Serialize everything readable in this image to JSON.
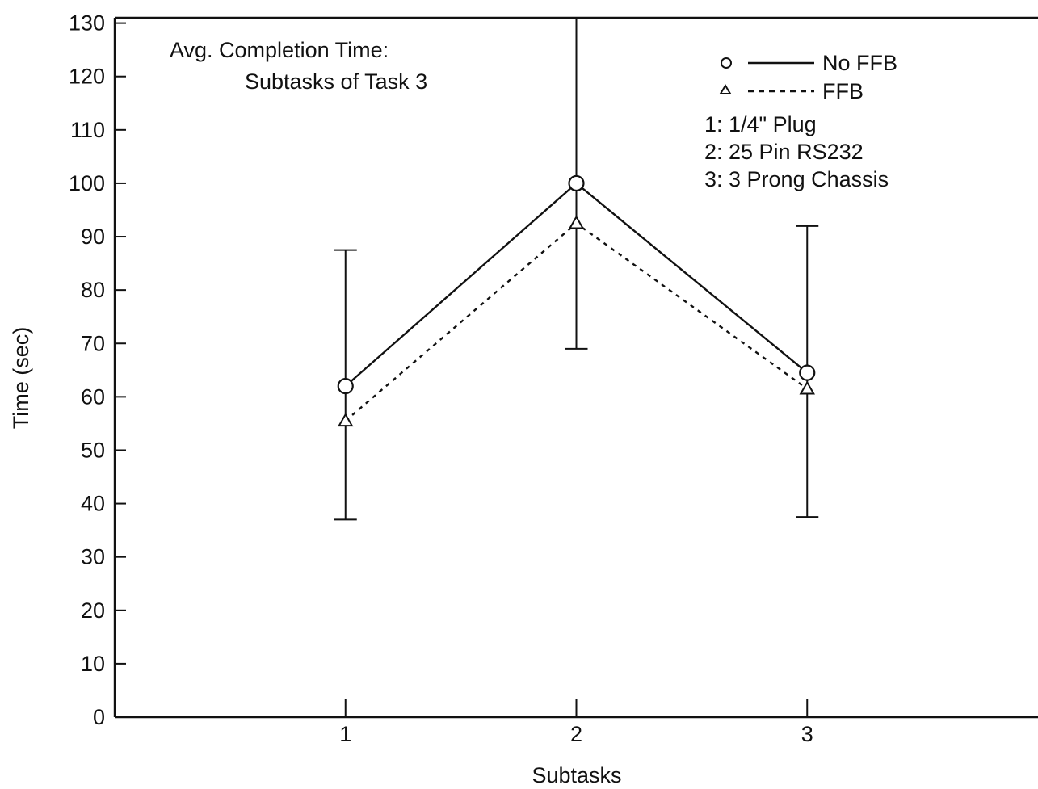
{
  "chart_data": {
    "type": "line",
    "title_lines": [
      "Avg. Completion Time:",
      "Subtasks of Task 3"
    ],
    "xlabel": "Subtasks",
    "ylabel": "Time (sec)",
    "categories": [
      "1",
      "2",
      "3"
    ],
    "x_range": [
      0,
      4
    ],
    "yticks": [
      "0",
      "10",
      "20",
      "30",
      "40",
      "50",
      "60",
      "70",
      "80",
      "90",
      "100",
      "110",
      "120",
      "130"
    ],
    "ylim": [
      0,
      131
    ],
    "grid": false,
    "legend_placement": "top-right",
    "series": [
      {
        "name": "No FFB",
        "marker": "circle",
        "line_style": "solid",
        "values": [
          62,
          100,
          64.5
        ]
      },
      {
        "name": "FFB",
        "marker": "triangle",
        "line_style": "dashed",
        "values": [
          55.5,
          92.5,
          61.5
        ]
      }
    ],
    "error_bars": [
      {
        "category": "1",
        "low": 37,
        "high": 87.5
      },
      {
        "category": "2",
        "low": 69,
        "high": 131
      },
      {
        "category": "3",
        "low": 37.5,
        "high": 92
      }
    ],
    "notes": [
      "1:  1/4\" Plug",
      "2:  25 Pin RS232",
      "3:  3 Prong Chassis"
    ],
    "colors": {
      "ink": "#111111",
      "background": "#ffffff"
    }
  }
}
